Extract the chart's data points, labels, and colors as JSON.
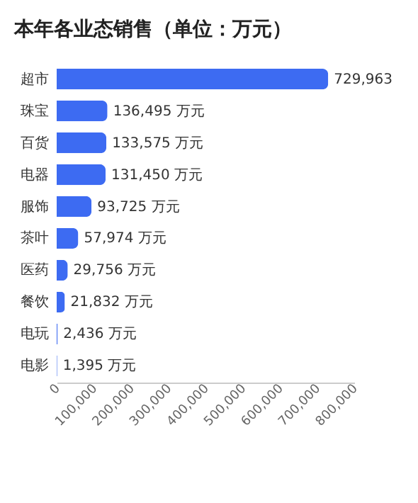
{
  "chart_data": {
    "type": "bar",
    "orientation": "horizontal",
    "title": "本年各业态销售（单位：万元）",
    "categories": [
      "超市",
      "珠宝",
      "百货",
      "电器",
      "服饰",
      "茶叶",
      "医药",
      "餐饮",
      "电玩",
      "电影"
    ],
    "values": [
      729963,
      136495,
      133575,
      131450,
      93725,
      57974,
      29756,
      21832,
      2436,
      1395
    ],
    "value_labels": [
      "729,963",
      "136,495 万元",
      "133,575 万元",
      "131,450 万元",
      "93,725 万元",
      "57,974 万元",
      "29,756 万元",
      "21,832 万元",
      "2,436 万元",
      "1,395 万元"
    ],
    "color": "#3d6bf2",
    "xlim": [
      0,
      800000
    ],
    "xticks": [
      0,
      {
        "value": 100000,
        "label": "100,000"
      },
      {
        "value": 200000,
        "label": "200,000"
      },
      {
        "value": 300000,
        "label": "300,000"
      },
      {
        "value": 400000,
        "label": "400,000"
      },
      {
        "value": 500000,
        "label": "500,000"
      },
      {
        "value": 600000,
        "label": "600,000"
      },
      {
        "value": 700000,
        "label": "700,000"
      },
      {
        "value": 800000,
        "label": "800,000"
      }
    ],
    "grid": false
  }
}
